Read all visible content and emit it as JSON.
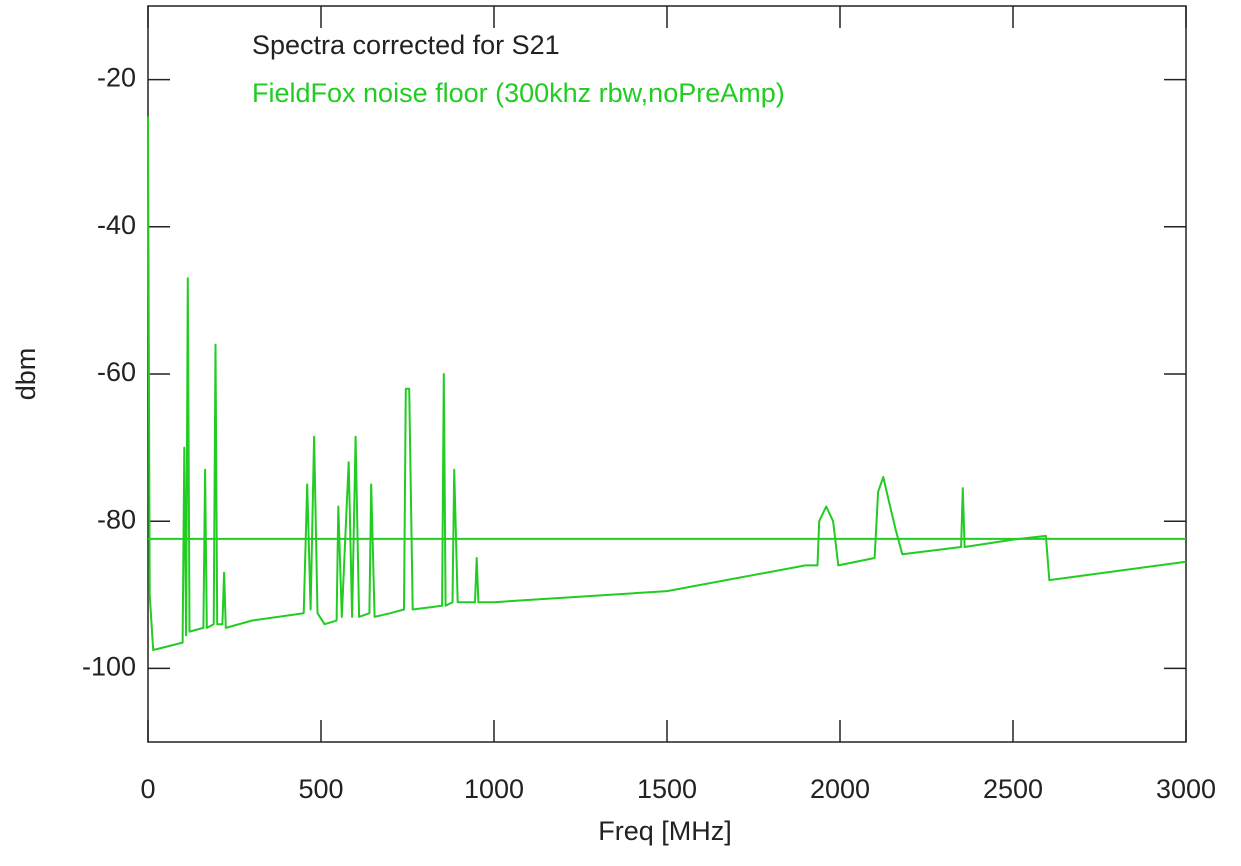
{
  "chart_data": {
    "type": "line",
    "x_label": "Freq [MHz]",
    "y_label": "dbm",
    "xlim": [
      0,
      3000
    ],
    "ylim": [
      -110,
      -10
    ],
    "xticks": [
      0,
      500,
      1000,
      1500,
      2000,
      2500,
      3000
    ],
    "yticks": [
      -100,
      -80,
      -60,
      -40,
      -20
    ],
    "legend": "top-left",
    "series": [
      {
        "name": "Spectra corrected for S21",
        "color": "#22cc22",
        "legend_color": "#222222",
        "x": [
          0,
          5,
          15,
          100,
          105,
          110,
          115,
          120,
          160,
          165,
          170,
          190,
          195,
          200,
          215,
          220,
          225,
          300,
          450,
          460,
          470,
          480,
          490,
          510,
          545,
          550,
          560,
          575,
          580,
          590,
          600,
          610,
          640,
          645,
          655,
          700,
          740,
          745,
          755,
          765,
          850,
          855,
          860,
          880,
          885,
          895,
          945,
          950,
          955,
          1000,
          1500,
          1900,
          1935,
          1940,
          1960,
          1980,
          1995,
          2100,
          2110,
          2125,
          2140,
          2160,
          2180,
          2350,
          2355,
          2360,
          2500,
          2595,
          2605,
          3000
        ],
        "values": [
          -25,
          -90,
          -97.5,
          -96.5,
          -70,
          -95.5,
          -47,
          -95,
          -94.5,
          -73,
          -94.5,
          -94,
          -56,
          -94,
          -94,
          -87,
          -94.5,
          -93.5,
          -92.5,
          -75,
          -92,
          -68.5,
          -92.5,
          -94,
          -93.5,
          -78,
          -93,
          -77,
          -72,
          -93,
          -68.5,
          -93,
          -92.5,
          -75,
          -93,
          -92.5,
          -92,
          -62,
          -62,
          -92,
          -91.5,
          -60,
          -91.5,
          -91,
          -73,
          -91,
          -91,
          -85,
          -91,
          -91,
          -89.5,
          -86,
          -86,
          -80,
          -78,
          -80,
          -86,
          -85,
          -76,
          -74,
          -77,
          -81,
          -84.5,
          -83.5,
          -75.5,
          -83.5,
          -82.5,
          -82,
          -88,
          -85.5
        ]
      },
      {
        "name": "FieldFox noise floor (300khz rbw,noPreAmp)",
        "color": "#22cc22",
        "legend_color": "#22cc22",
        "x": [
          0,
          3000
        ],
        "values": [
          -82.4,
          -82.4
        ]
      }
    ]
  }
}
